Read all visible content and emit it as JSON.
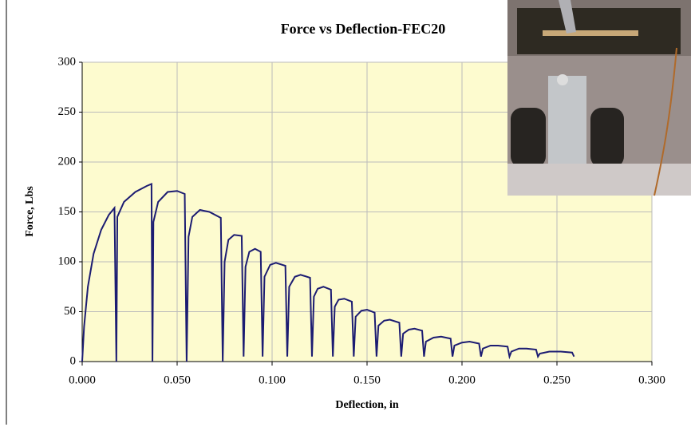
{
  "chart_data": {
    "type": "line",
    "title": "Force vs Deflection-FEC20",
    "x_label": "Deflection, in",
    "y_label": "Force, Lbs",
    "x": [
      0,
      0.001,
      0.003,
      0.006,
      0.01,
      0.014,
      0.017,
      0.018,
      0.0185,
      0.022,
      0.028,
      0.034,
      0.0365,
      0.037,
      0.0375,
      0.04,
      0.045,
      0.05,
      0.054,
      0.055,
      0.056,
      0.058,
      0.062,
      0.067,
      0.073,
      0.074,
      0.075,
      0.077,
      0.08,
      0.084,
      0.085,
      0.086,
      0.088,
      0.091,
      0.094,
      0.095,
      0.096,
      0.099,
      0.102,
      0.107,
      0.108,
      0.109,
      0.112,
      0.115,
      0.12,
      0.121,
      0.122,
      0.124,
      0.127,
      0.131,
      0.132,
      0.133,
      0.135,
      0.138,
      0.142,
      0.143,
      0.144,
      0.147,
      0.15,
      0.154,
      0.155,
      0.156,
      0.159,
      0.162,
      0.167,
      0.168,
      0.169,
      0.172,
      0.175,
      0.179,
      0.18,
      0.181,
      0.185,
      0.189,
      0.194,
      0.195,
      0.196,
      0.2,
      0.204,
      0.209,
      0.21,
      0.211,
      0.215,
      0.219,
      0.224,
      0.225,
      0.226,
      0.23,
      0.234,
      0.239,
      0.24,
      0.241,
      0.246,
      0.252,
      0.258,
      0.259
    ],
    "series": [
      {
        "color": "#1c1c72",
        "values": [
          0,
          35,
          75,
          108,
          132,
          147,
          154,
          0,
          145,
          160,
          170,
          176,
          178,
          0,
          140,
          160,
          170,
          171,
          168,
          0,
          125,
          145,
          152,
          150,
          144,
          0,
          100,
          122,
          127,
          126,
          5,
          95,
          110,
          113,
          110,
          5,
          85,
          97,
          99,
          96,
          5,
          75,
          85,
          87,
          84,
          5,
          65,
          73,
          75,
          72,
          5,
          55,
          62,
          63,
          60,
          5,
          45,
          51,
          52,
          49,
          5,
          36,
          41,
          42,
          39,
          5,
          28,
          32,
          33,
          31,
          5,
          20,
          24,
          25,
          23,
          5,
          16,
          19,
          20,
          18,
          5,
          13,
          16,
          16,
          15,
          5,
          10,
          13,
          13,
          12,
          5,
          8,
          10,
          10,
          9,
          5
        ]
      }
    ],
    "xlim": [
      0,
      0.3
    ],
    "xticks": [
      {
        "value": 0,
        "label": "0.000"
      },
      {
        "value": 0.05,
        "label": "0.050"
      },
      {
        "value": 0.1,
        "label": "0.100"
      },
      {
        "value": 0.15,
        "label": "0.150"
      },
      {
        "value": 0.2,
        "label": "0.200"
      },
      {
        "value": 0.25,
        "label": "0.250"
      },
      {
        "value": 0.3,
        "label": "0.300"
      }
    ],
    "ylim": [
      0,
      300
    ],
    "yticks": [
      0,
      50,
      100,
      150,
      200,
      250,
      300
    ],
    "grid": true,
    "plot_background": "#fdfbcf"
  }
}
